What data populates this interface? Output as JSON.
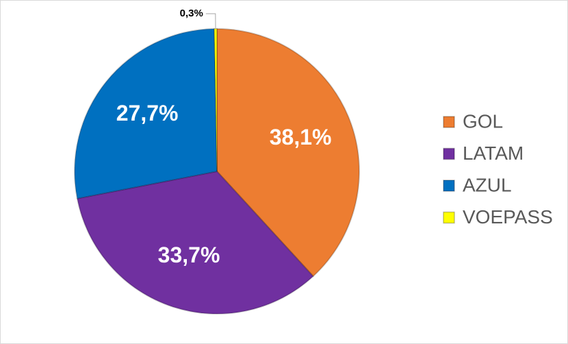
{
  "chart_data": {
    "type": "pie",
    "categories": [
      "GOL",
      "LATAM",
      "AZUL",
      "VOEPASS"
    ],
    "values": [
      38.1,
      33.7,
      27.7,
      0.3
    ],
    "value_labels": [
      "38,1%",
      "33,7%",
      "27,7%",
      "0,3%"
    ],
    "colors": [
      "#ED7D31",
      "#7030A0",
      "#0070C0",
      "#FFFF00"
    ],
    "legend": "right"
  }
}
